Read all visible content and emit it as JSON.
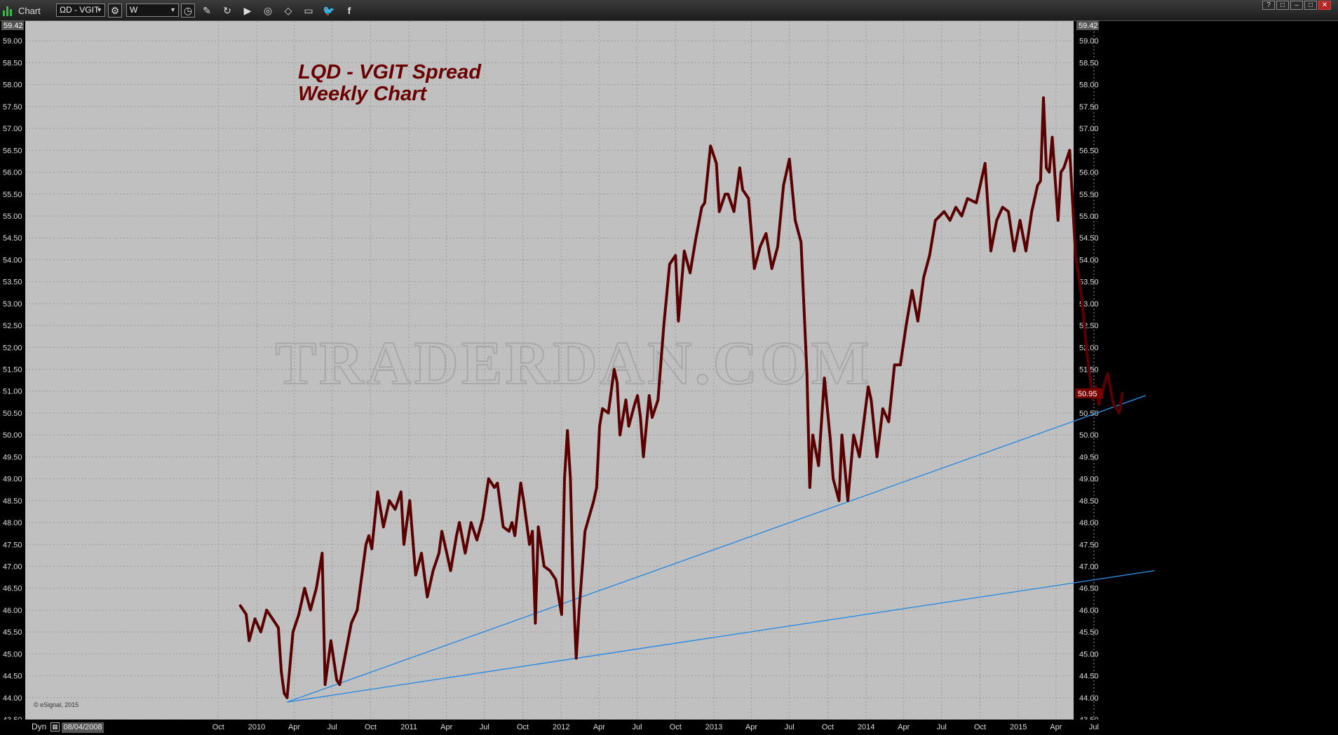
{
  "window": {
    "title": "Chart",
    "controls": [
      "?",
      "□",
      "–",
      "□",
      "✕"
    ]
  },
  "toolbar": {
    "symbol_value": "LQD - VGIT",
    "symbol_display": "ΩD - VGIT",
    "interval_value": "W",
    "tools": [
      "gear-icon",
      "clock-icon",
      "pencil-icon",
      "refresh-icon",
      "play-icon",
      "scan-icon",
      "eraser-icon",
      "comment-icon",
      "twitter-icon",
      "facebook-icon"
    ]
  },
  "chart_data": {
    "type": "line",
    "title": "LQD - VGIT Spread",
    "subtitle": "Weekly Chart",
    "watermark": "TRADERDAN.COM",
    "copyright": "© eSignal, 2015",
    "ylim": [
      43.5,
      59.42
    ],
    "y_ticks": [
      "59.00",
      "58.50",
      "58.00",
      "57.50",
      "57.00",
      "56.50",
      "56.00",
      "55.50",
      "55.00",
      "54.50",
      "54.00",
      "53.50",
      "53.00",
      "52.50",
      "52.00",
      "51.50",
      "51.00",
      "50.50",
      "50.00",
      "49.50",
      "49.00",
      "48.50",
      "48.00",
      "47.50",
      "47.00",
      "46.50",
      "46.00",
      "45.50",
      "45.00",
      "44.50",
      "44.00",
      "43.50"
    ],
    "y_top_label": "59.42",
    "last_price_label": "50.95",
    "last_price": 50.95,
    "x_ticks": [
      "Oct",
      "2010",
      "Apr",
      "Jul",
      "Oct",
      "2011",
      "Apr",
      "Jul",
      "Oct",
      "2012",
      "Apr",
      "Jul",
      "Oct",
      "2013",
      "Apr",
      "Jul",
      "Oct",
      "2014",
      "Apr",
      "Jul",
      "Oct",
      "2015",
      "Apr",
      "Jul"
    ],
    "x_tick_dates": [
      "2009-10-01",
      "2010-01-01",
      "2010-04-01",
      "2010-07-01",
      "2010-10-01",
      "2011-01-01",
      "2011-04-01",
      "2011-07-01",
      "2011-10-01",
      "2012-01-01",
      "2012-04-01",
      "2012-07-01",
      "2012-10-01",
      "2013-01-01",
      "2013-04-01",
      "2013-07-01",
      "2013-10-01",
      "2014-01-01",
      "2014-04-01",
      "2014-07-01",
      "2014-10-01",
      "2015-01-01",
      "2015-04-01",
      "2015-07-01"
    ],
    "series": [
      {
        "color": "#5a0000",
        "points": [
          [
            "2009-11-23",
            46.1
          ],
          [
            "2009-12-07",
            45.9
          ],
          [
            "2009-12-14",
            45.3
          ],
          [
            "2009-12-28",
            45.8
          ],
          [
            "2010-01-11",
            45.5
          ],
          [
            "2010-01-25",
            46.0
          ],
          [
            "2010-02-08",
            45.8
          ],
          [
            "2010-02-22",
            45.6
          ],
          [
            "2010-03-01",
            44.6
          ],
          [
            "2010-03-08",
            44.1
          ],
          [
            "2010-03-15",
            44.0
          ],
          [
            "2010-03-29",
            45.5
          ],
          [
            "2010-04-12",
            45.9
          ],
          [
            "2010-04-26",
            46.5
          ],
          [
            "2010-05-10",
            46.0
          ],
          [
            "2010-05-24",
            46.5
          ],
          [
            "2010-06-07",
            47.3
          ],
          [
            "2010-06-14",
            44.3
          ],
          [
            "2010-06-28",
            45.3
          ],
          [
            "2010-07-12",
            44.4
          ],
          [
            "2010-07-19",
            44.3
          ],
          [
            "2010-08-02",
            45.0
          ],
          [
            "2010-08-16",
            45.7
          ],
          [
            "2010-08-30",
            46.0
          ],
          [
            "2010-09-20",
            47.5
          ],
          [
            "2010-09-27",
            47.7
          ],
          [
            "2010-10-04",
            47.4
          ],
          [
            "2010-10-18",
            48.7
          ],
          [
            "2010-11-01",
            47.9
          ],
          [
            "2010-11-15",
            48.5
          ],
          [
            "2010-11-29",
            48.3
          ],
          [
            "2010-12-13",
            48.7
          ],
          [
            "2010-12-20",
            47.5
          ],
          [
            "2011-01-03",
            48.5
          ],
          [
            "2011-01-17",
            46.8
          ],
          [
            "2011-01-31",
            47.3
          ],
          [
            "2011-02-14",
            46.3
          ],
          [
            "2011-02-28",
            46.9
          ],
          [
            "2011-03-14",
            47.3
          ],
          [
            "2011-03-21",
            47.8
          ],
          [
            "2011-04-04",
            47.2
          ],
          [
            "2011-04-11",
            46.9
          ],
          [
            "2011-04-25",
            47.7
          ],
          [
            "2011-05-02",
            48.0
          ],
          [
            "2011-05-16",
            47.3
          ],
          [
            "2011-05-30",
            48.0
          ],
          [
            "2011-06-13",
            47.6
          ],
          [
            "2011-06-27",
            48.1
          ],
          [
            "2011-07-11",
            49.0
          ],
          [
            "2011-07-25",
            48.8
          ],
          [
            "2011-08-01",
            48.9
          ],
          [
            "2011-08-15",
            47.9
          ],
          [
            "2011-08-29",
            47.8
          ],
          [
            "2011-09-05",
            48.0
          ],
          [
            "2011-09-12",
            47.7
          ],
          [
            "2011-09-26",
            48.9
          ],
          [
            "2011-10-03",
            48.5
          ],
          [
            "2011-10-17",
            47.5
          ],
          [
            "2011-10-24",
            47.8
          ],
          [
            "2011-10-31",
            45.7
          ],
          [
            "2011-11-07",
            47.9
          ],
          [
            "2011-11-21",
            47.0
          ],
          [
            "2011-12-05",
            46.9
          ],
          [
            "2011-12-19",
            46.7
          ],
          [
            "2012-01-02",
            45.9
          ],
          [
            "2012-01-09",
            49.0
          ],
          [
            "2012-01-16",
            50.1
          ],
          [
            "2012-01-23",
            49.0
          ],
          [
            "2012-01-30",
            46.5
          ],
          [
            "2012-02-06",
            44.9
          ],
          [
            "2012-02-13",
            46.0
          ],
          [
            "2012-02-27",
            47.8
          ],
          [
            "2012-03-19",
            48.5
          ],
          [
            "2012-03-26",
            48.8
          ],
          [
            "2012-04-02",
            50.2
          ],
          [
            "2012-04-09",
            50.6
          ],
          [
            "2012-04-23",
            50.5
          ],
          [
            "2012-05-07",
            51.5
          ],
          [
            "2012-05-14",
            51.2
          ],
          [
            "2012-05-21",
            50.0
          ],
          [
            "2012-06-04",
            50.8
          ],
          [
            "2012-06-11",
            50.2
          ],
          [
            "2012-06-25",
            50.7
          ],
          [
            "2012-07-02",
            50.9
          ],
          [
            "2012-07-09",
            50.4
          ],
          [
            "2012-07-16",
            49.5
          ],
          [
            "2012-07-30",
            50.9
          ],
          [
            "2012-08-06",
            50.4
          ],
          [
            "2012-08-20",
            50.8
          ],
          [
            "2012-09-03",
            52.5
          ],
          [
            "2012-09-17",
            53.9
          ],
          [
            "2012-10-01",
            54.1
          ],
          [
            "2012-10-08",
            52.6
          ],
          [
            "2012-10-22",
            54.2
          ],
          [
            "2012-11-05",
            53.7
          ],
          [
            "2012-11-19",
            54.5
          ],
          [
            "2012-12-03",
            55.2
          ],
          [
            "2012-12-10",
            55.3
          ],
          [
            "2012-12-24",
            56.6
          ],
          [
            "2013-01-07",
            56.2
          ],
          [
            "2013-01-14",
            55.1
          ],
          [
            "2013-01-28",
            55.5
          ],
          [
            "2013-02-04",
            55.5
          ],
          [
            "2013-02-18",
            55.1
          ],
          [
            "2013-03-04",
            56.1
          ],
          [
            "2013-03-11",
            55.6
          ],
          [
            "2013-03-25",
            55.4
          ],
          [
            "2013-04-08",
            53.8
          ],
          [
            "2013-04-22",
            54.3
          ],
          [
            "2013-05-06",
            54.6
          ],
          [
            "2013-05-20",
            53.8
          ],
          [
            "2013-06-03",
            54.3
          ],
          [
            "2013-06-17",
            55.7
          ],
          [
            "2013-07-01",
            56.3
          ],
          [
            "2013-07-15",
            54.9
          ],
          [
            "2013-07-29",
            54.4
          ],
          [
            "2013-08-12",
            51.4
          ],
          [
            "2013-08-19",
            48.8
          ],
          [
            "2013-08-26",
            50.0
          ],
          [
            "2013-09-09",
            49.3
          ],
          [
            "2013-09-23",
            51.3
          ],
          [
            "2013-10-07",
            49.9
          ],
          [
            "2013-10-14",
            49.0
          ],
          [
            "2013-10-28",
            48.5
          ],
          [
            "2013-11-04",
            50.0
          ],
          [
            "2013-11-18",
            48.5
          ],
          [
            "2013-12-02",
            50.0
          ],
          [
            "2013-12-16",
            49.5
          ],
          [
            "2014-01-06",
            51.1
          ],
          [
            "2014-01-13",
            50.8
          ],
          [
            "2014-01-27",
            49.5
          ],
          [
            "2014-02-10",
            50.6
          ],
          [
            "2014-02-24",
            50.3
          ],
          [
            "2014-03-10",
            51.6
          ],
          [
            "2014-03-24",
            51.6
          ],
          [
            "2014-04-07",
            52.5
          ],
          [
            "2014-04-21",
            53.3
          ],
          [
            "2014-05-05",
            52.6
          ],
          [
            "2014-05-19",
            53.6
          ],
          [
            "2014-06-02",
            54.1
          ],
          [
            "2014-06-16",
            54.9
          ],
          [
            "2014-07-07",
            55.1
          ],
          [
            "2014-07-21",
            54.9
          ],
          [
            "2014-08-04",
            55.2
          ],
          [
            "2014-08-18",
            55.0
          ],
          [
            "2014-09-01",
            55.4
          ],
          [
            "2014-09-22",
            55.3
          ],
          [
            "2014-10-13",
            56.2
          ],
          [
            "2014-10-27",
            54.2
          ],
          [
            "2014-11-10",
            54.9
          ],
          [
            "2014-11-24",
            55.2
          ],
          [
            "2014-12-08",
            55.1
          ],
          [
            "2014-12-22",
            54.2
          ],
          [
            "2015-01-05",
            54.9
          ],
          [
            "2015-01-19",
            54.2
          ],
          [
            "2015-02-02",
            55.1
          ],
          [
            "2015-02-16",
            55.7
          ],
          [
            "2015-02-23",
            55.8
          ],
          [
            "2015-03-02",
            57.7
          ],
          [
            "2015-03-09",
            56.1
          ],
          [
            "2015-03-16",
            56.0
          ],
          [
            "2015-03-23",
            56.8
          ],
          [
            "2015-04-06",
            54.9
          ],
          [
            "2015-04-13",
            56.0
          ],
          [
            "2015-04-20",
            56.1
          ],
          [
            "2015-05-04",
            56.5
          ],
          [
            "2015-05-18",
            54.1
          ],
          [
            "2015-06-01",
            53.2
          ],
          [
            "2015-06-15",
            51.8
          ],
          [
            "2015-06-29",
            50.8
          ],
          [
            "2015-07-06",
            51.1
          ],
          [
            "2015-07-13",
            50.7
          ],
          [
            "2015-07-27",
            51.2
          ],
          [
            "2015-08-03",
            51.4
          ],
          [
            "2015-08-17",
            50.7
          ],
          [
            "2015-08-31",
            50.5
          ],
          [
            "2015-09-07",
            50.95
          ]
        ]
      }
    ],
    "trendlines": [
      {
        "color": "#2a8be0",
        "from": [
          "2010-03-15",
          43.9
        ],
        "to": [
          "2015-11-02",
          50.9
        ]
      },
      {
        "color": "#2a8be0",
        "from": [
          "2010-03-15",
          43.9
        ],
        "to": [
          "2015-11-23",
          46.9
        ]
      }
    ]
  },
  "footer": {
    "dyn_label": "Dyn",
    "start_date": "08/04/2008"
  }
}
